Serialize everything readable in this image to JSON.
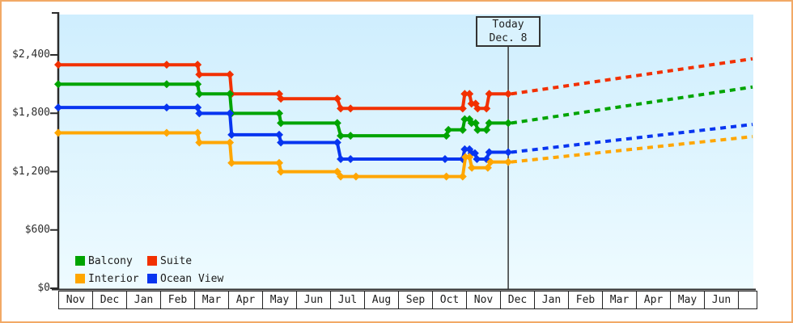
{
  "window": {
    "frame_color": "#f2a966",
    "background": "#ffffff",
    "plot_bg_top": "#cfeefe",
    "plot_bg_bottom": "#eefbff",
    "axis_color": "#2b2b2b",
    "today_line_color": "#333333"
  },
  "today_box": {
    "line1": "Today",
    "line2": "Dec. 8"
  },
  "chart_data": {
    "type": "line",
    "subtype": "step-price-history-with-forecast",
    "title": "",
    "x_unit": "months (0 = first Nov, tick per month)",
    "x_axis": {
      "month_labels": [
        "Nov",
        "Dec",
        "Jan",
        "Feb",
        "Mar",
        "Apr",
        "May",
        "Jun",
        "Jul",
        "Aug",
        "Sep",
        "Oct",
        "Nov",
        "Dec",
        "Jan",
        "Feb",
        "Mar",
        "Apr",
        "May",
        "Jun"
      ]
    },
    "y_axis": {
      "tick_values": [
        2400,
        1800,
        1200,
        600,
        0
      ],
      "tick_labels": [
        "$2,400",
        "$1,800",
        "$1,200",
        "$600",
        "$0"
      ],
      "range": [
        0,
        2400
      ],
      "grid": false
    },
    "legend": {
      "position": "bottom-left-inside",
      "items": [
        {
          "label": "Balcony",
          "color": "#00a400"
        },
        {
          "label": "Suite",
          "color": "#f23000"
        },
        {
          "label": "Interior",
          "color": "#ffa600"
        },
        {
          "label": "Ocean View",
          "color": "#0835f0"
        }
      ]
    },
    "today": {
      "t": 13.24,
      "label": "Today Dec. 8"
    },
    "series": [
      {
        "name": "Suite",
        "color": "#f23000",
        "points": [
          [
            0,
            2299
          ],
          [
            3.19,
            2299
          ],
          [
            4.1,
            2299
          ],
          [
            4.15,
            2199
          ],
          [
            5.05,
            2199
          ],
          [
            5.1,
            1999
          ],
          [
            6.5,
            1999
          ],
          [
            6.55,
            1949
          ],
          [
            8.21,
            1949
          ],
          [
            8.31,
            1849
          ],
          [
            8.6,
            1849
          ],
          [
            11.9,
            1849
          ],
          [
            11.96,
            1999
          ],
          [
            12.1,
            1999
          ],
          [
            12.16,
            1899
          ],
          [
            12.28,
            1899
          ],
          [
            12.34,
            1849
          ],
          [
            12.6,
            1849
          ],
          [
            12.68,
            1999
          ],
          [
            13.24,
            1999
          ]
        ]
      },
      {
        "name": "Balcony",
        "color": "#00a400",
        "points": [
          [
            0,
            2099
          ],
          [
            3.19,
            2099
          ],
          [
            4.1,
            2099
          ],
          [
            4.15,
            1999
          ],
          [
            5.05,
            1999
          ],
          [
            5.1,
            1799
          ],
          [
            6.5,
            1799
          ],
          [
            6.55,
            1699
          ],
          [
            8.21,
            1699
          ],
          [
            8.31,
            1569
          ],
          [
            8.6,
            1569
          ],
          [
            11.42,
            1569
          ],
          [
            11.48,
            1629
          ],
          [
            11.9,
            1629
          ],
          [
            11.96,
            1739
          ],
          [
            12.1,
            1739
          ],
          [
            12.16,
            1699
          ],
          [
            12.28,
            1699
          ],
          [
            12.34,
            1629
          ],
          [
            12.6,
            1629
          ],
          [
            12.68,
            1699
          ],
          [
            13.24,
            1699
          ]
        ]
      },
      {
        "name": "Ocean View",
        "color": "#0835f0",
        "points": [
          [
            0,
            1859
          ],
          [
            3.19,
            1859
          ],
          [
            4.1,
            1859
          ],
          [
            4.15,
            1799
          ],
          [
            5.05,
            1799
          ],
          [
            5.1,
            1579
          ],
          [
            6.5,
            1579
          ],
          [
            6.55,
            1499
          ],
          [
            8.21,
            1499
          ],
          [
            8.31,
            1329
          ],
          [
            8.6,
            1329
          ],
          [
            11.38,
            1329
          ],
          [
            11.9,
            1329
          ],
          [
            11.96,
            1429
          ],
          [
            12.1,
            1429
          ],
          [
            12.16,
            1389
          ],
          [
            12.26,
            1389
          ],
          [
            12.32,
            1329
          ],
          [
            12.6,
            1329
          ],
          [
            12.68,
            1399
          ],
          [
            13.24,
            1399
          ]
        ]
      },
      {
        "name": "Interior",
        "color": "#ffa600",
        "points": [
          [
            0,
            1599
          ],
          [
            3.19,
            1599
          ],
          [
            4.1,
            1599
          ],
          [
            4.15,
            1499
          ],
          [
            5.05,
            1499
          ],
          [
            5.1,
            1289
          ],
          [
            6.5,
            1289
          ],
          [
            6.55,
            1199
          ],
          [
            8.21,
            1199
          ],
          [
            8.31,
            1149
          ],
          [
            8.76,
            1149
          ],
          [
            11.42,
            1149
          ],
          [
            11.9,
            1149
          ],
          [
            11.98,
            1349
          ],
          [
            12.1,
            1349
          ],
          [
            12.17,
            1239
          ],
          [
            12.64,
            1239
          ],
          [
            12.72,
            1299
          ],
          [
            13.24,
            1299
          ]
        ]
      }
    ],
    "projections": [
      {
        "name": "Suite",
        "color": "#f23000",
        "from": [
          13.33,
          1999
        ],
        "to": [
          20.43,
          2360
        ]
      },
      {
        "name": "Balcony",
        "color": "#00a400",
        "from": [
          13.33,
          1699
        ],
        "to": [
          20.43,
          2070
        ]
      },
      {
        "name": "Ocean View",
        "color": "#0835f0",
        "from": [
          13.33,
          1399
        ],
        "to": [
          20.43,
          1685
        ]
      },
      {
        "name": "Interior",
        "color": "#ffa600",
        "from": [
          13.33,
          1299
        ],
        "to": [
          20.43,
          1560
        ]
      }
    ],
    "values_at_today": {
      "Suite": 1999,
      "Balcony": 1699,
      "Ocean View": 1399,
      "Interior": 1299
    }
  }
}
